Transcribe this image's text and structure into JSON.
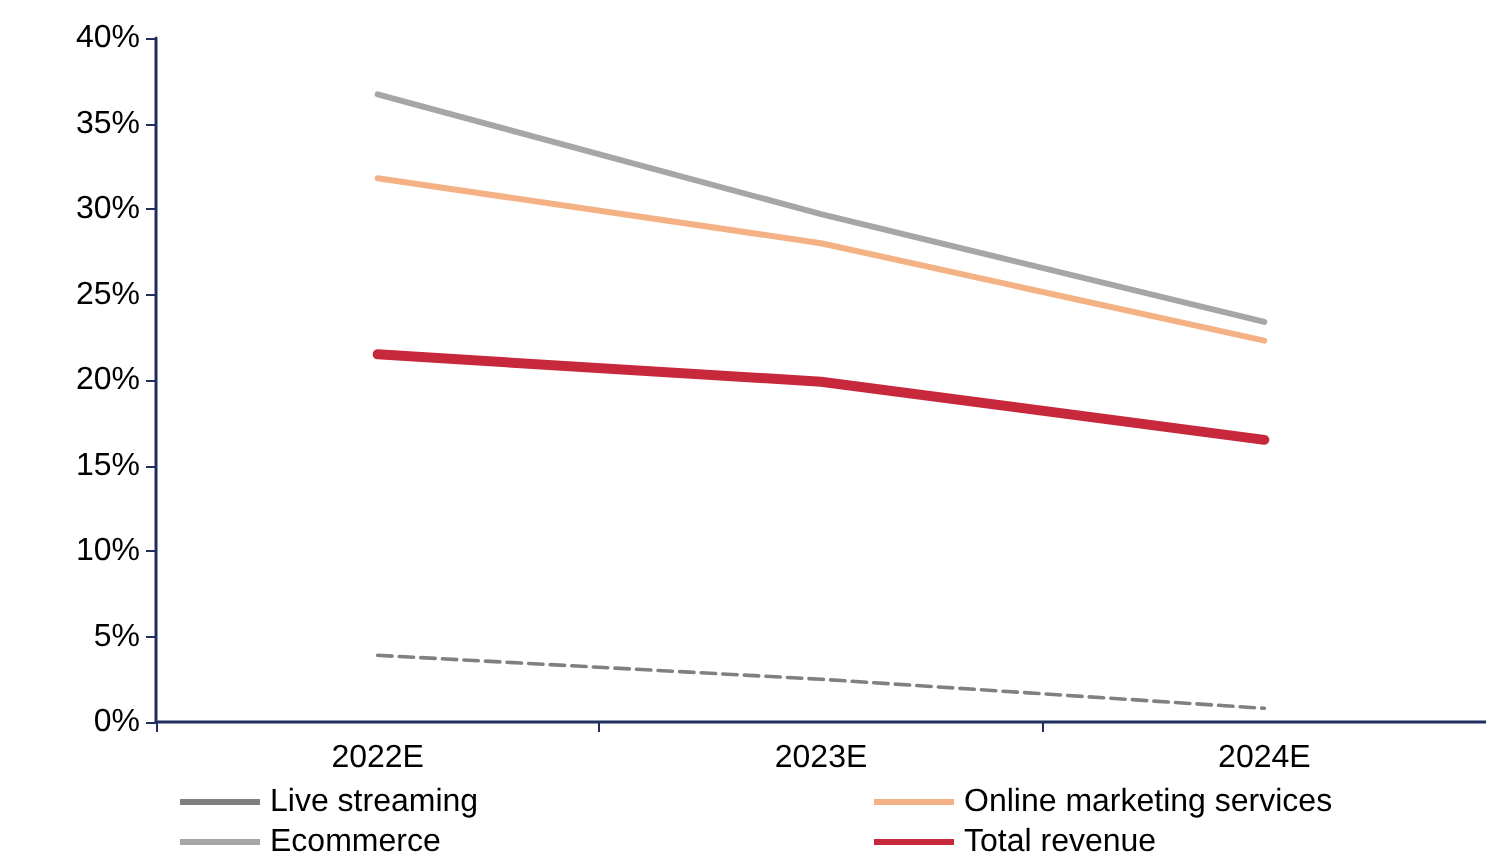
{
  "chart_data": {
    "type": "line",
    "categories": [
      "2022E",
      "2023E",
      "2024E"
    ],
    "series": [
      {
        "name": "Live streaming",
        "color": "#808080",
        "line_style": "dashed",
        "values": [
          3.9,
          2.5,
          0.8
        ]
      },
      {
        "name": "Online marketing services",
        "color": "#f4b183",
        "values": [
          31.8,
          28.0,
          22.3
        ]
      },
      {
        "name": "Ecommerce",
        "color": "#a6a6a6",
        "values": [
          36.7,
          29.7,
          23.4
        ]
      },
      {
        "name": "Total revenue",
        "color": "#c8283c",
        "values": [
          21.5,
          19.9,
          16.5
        ]
      }
    ],
    "ylim": [
      0,
      40
    ],
    "yticks": [
      {
        "value": 0,
        "label": "0%"
      },
      {
        "value": 5,
        "label": "5%"
      },
      {
        "value": 10,
        "label": "10%"
      },
      {
        "value": 15,
        "label": "15%"
      },
      {
        "value": 20,
        "label": "20%"
      },
      {
        "value": 25,
        "label": "25%"
      },
      {
        "value": 30,
        "label": "30%"
      },
      {
        "value": 35,
        "label": "35%"
      },
      {
        "value": 40,
        "label": "40%"
      }
    ],
    "grid": false,
    "legend": "bottom",
    "marker": "none",
    "line_style": "solid"
  }
}
